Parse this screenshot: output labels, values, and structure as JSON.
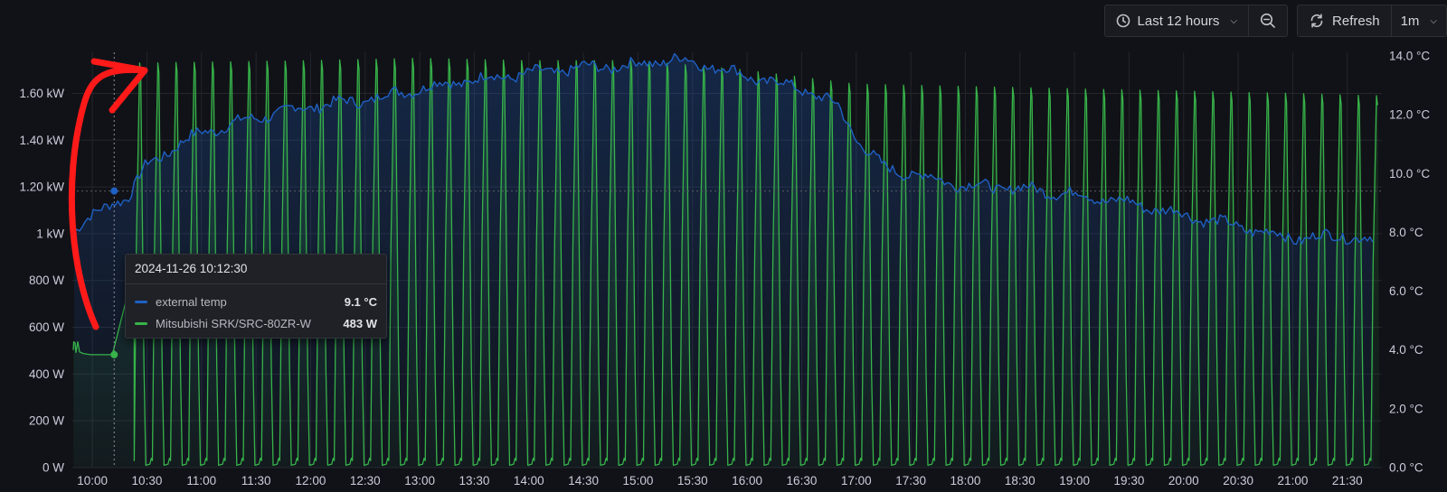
{
  "toolbar": {
    "time_range_label": "Last 12 hours",
    "refresh_label": "Refresh",
    "refresh_interval": "1m"
  },
  "tooltip": {
    "timestamp": "2024-11-26 10:12:30",
    "rows": [
      {
        "name": "external temp",
        "value": "9.1 °C",
        "color": "#1f60c4"
      },
      {
        "name": "Mitsubishi SRK/SRC-80ZR-W",
        "value": "483 W",
        "color": "#37b34a"
      }
    ]
  },
  "chart_data": {
    "type": "line",
    "x_ticks": [
      "10:00",
      "10:30",
      "11:00",
      "11:30",
      "12:00",
      "12:30",
      "13:00",
      "13:30",
      "14:00",
      "14:30",
      "15:00",
      "15:30",
      "16:00",
      "16:30",
      "17:00",
      "17:30",
      "18:00",
      "18:30",
      "19:00",
      "19:30",
      "20:00",
      "20:30",
      "21:00",
      "21:30"
    ],
    "x_range": [
      "09:49",
      "21:49"
    ],
    "y_left": {
      "ticks": [
        "0 W",
        "200 W",
        "400 W",
        "600 W",
        "800 W",
        "1 kW",
        "1.20 kW",
        "1.40 kW",
        "1.60 kW"
      ],
      "ylim_w": [
        0,
        1760
      ]
    },
    "y_right": {
      "ticks": [
        "0.0 °C",
        "2.0 °C",
        "4.0 °C",
        "6.0 °C",
        "8.0 °C",
        "10.0 °C",
        "12.0 °C",
        "14.0 °C"
      ],
      "ylim_c": [
        0,
        14
      ]
    },
    "grid": true,
    "legend": "none",
    "series": [
      {
        "name": "external temp",
        "axis": "right",
        "color": "#1f60c4",
        "points": [
          [
            "09:50",
            8.1
          ],
          [
            "10:00",
            8.5
          ],
          [
            "10:12",
            9.1
          ],
          [
            "10:20",
            9.2
          ],
          [
            "10:30",
            10.3
          ],
          [
            "10:45",
            10.9
          ],
          [
            "11:00",
            11.4
          ],
          [
            "11:30",
            11.9
          ],
          [
            "12:00",
            12.3
          ],
          [
            "12:30",
            12.5
          ],
          [
            "13:00",
            12.9
          ],
          [
            "13:30",
            13.2
          ],
          [
            "14:00",
            13.4
          ],
          [
            "14:30",
            13.6
          ],
          [
            "15:00",
            13.7
          ],
          [
            "15:20",
            13.9
          ],
          [
            "15:45",
            13.6
          ],
          [
            "16:00",
            13.3
          ],
          [
            "16:30",
            12.9
          ],
          [
            "16:50",
            12.3
          ],
          [
            "17:00",
            11.2
          ],
          [
            "17:15",
            10.2
          ],
          [
            "17:30",
            10.0
          ],
          [
            "18:00",
            9.6
          ],
          [
            "18:30",
            9.5
          ],
          [
            "19:00",
            9.3
          ],
          [
            "19:30",
            9.0
          ],
          [
            "20:00",
            8.6
          ],
          [
            "20:30",
            8.2
          ],
          [
            "21:00",
            7.8
          ],
          [
            "21:30",
            7.9
          ],
          [
            "21:45",
            7.7
          ]
        ]
      },
      {
        "name": "Mitsubishi SRK/SRC-80ZR-W",
        "axis": "left",
        "color": "#37b34a",
        "baseline_w": 483,
        "cycle_start": "10:25",
        "cycle_period_min": 10,
        "peaks_w": [
          [
            "10:30",
            1730
          ],
          [
            "12:00",
            1740
          ],
          [
            "13:00",
            1750
          ],
          [
            "14:00",
            1740
          ],
          [
            "15:00",
            1740
          ],
          [
            "16:00",
            1700
          ],
          [
            "17:00",
            1640
          ],
          [
            "18:00",
            1630
          ],
          [
            "19:00",
            1620
          ],
          [
            "20:00",
            1610
          ],
          [
            "21:00",
            1600
          ],
          [
            "21:45",
            1590
          ]
        ],
        "trough_w": 10
      }
    ]
  }
}
